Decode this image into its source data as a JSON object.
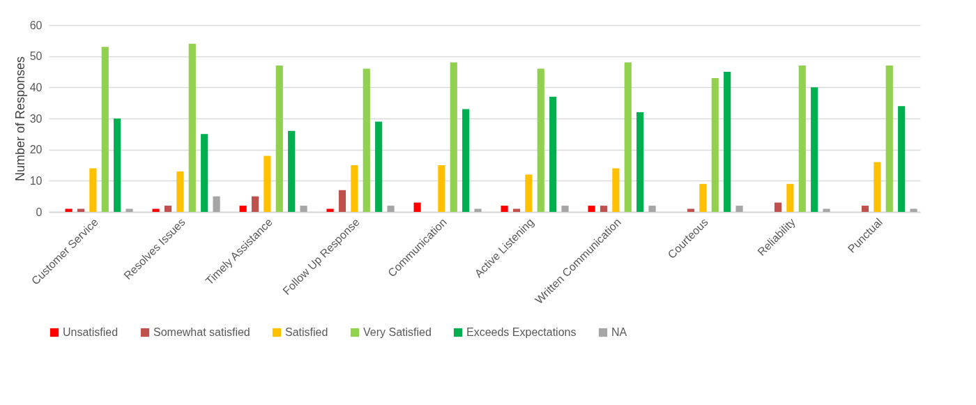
{
  "chart_data": {
    "type": "bar",
    "ylabel": "Number of Responses",
    "categories": [
      "Customer Service",
      "Resolves Issues",
      "Timely Assistance",
      "Follow Up Response",
      "Communication",
      "Active Listening",
      "Written Communication",
      "Courteous",
      "Reliability",
      "Punctual"
    ],
    "series": [
      {
        "name": "Unsatisfied",
        "color": "#ff0000",
        "values": [
          1,
          1,
          2,
          1,
          3,
          2,
          2,
          0,
          0,
          0
        ]
      },
      {
        "name": "Somewhat satisfied",
        "color": "#c0504d",
        "values": [
          1,
          2,
          5,
          7,
          0,
          1,
          2,
          1,
          3,
          2
        ]
      },
      {
        "name": "Satisfied",
        "color": "#ffc000",
        "values": [
          14,
          13,
          18,
          15,
          15,
          12,
          14,
          9,
          9,
          16
        ]
      },
      {
        "name": "Very Satisfied",
        "color": "#92d050",
        "values": [
          53,
          54,
          47,
          46,
          48,
          46,
          48,
          43,
          47,
          47
        ]
      },
      {
        "name": "Exceeds Expectations",
        "color": "#00b050",
        "values": [
          30,
          25,
          26,
          29,
          33,
          37,
          32,
          45,
          40,
          34
        ]
      },
      {
        "name": "NA",
        "color": "#a5a5a5",
        "values": [
          1,
          5,
          2,
          2,
          1,
          2,
          2,
          2,
          1,
          1
        ]
      }
    ],
    "ylim": [
      0,
      60
    ],
    "yticks": [
      0,
      10,
      20,
      30,
      40,
      50,
      60
    ],
    "grid": "y",
    "legend": "bottom"
  }
}
